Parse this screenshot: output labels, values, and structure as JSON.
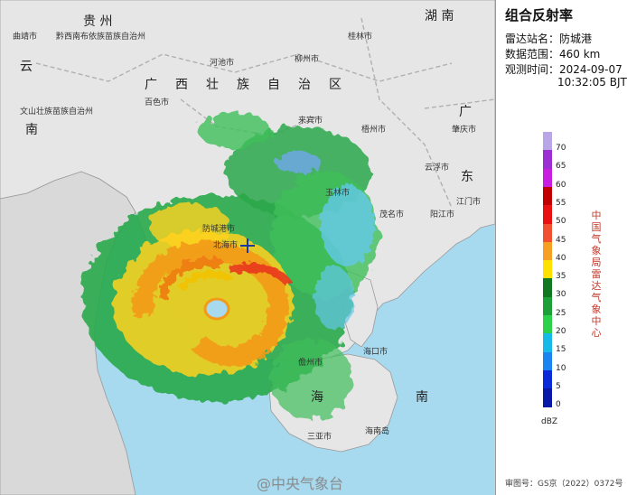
{
  "panel": {
    "title": "组合反射率",
    "station": "雷达站名：防城港",
    "range": "数据范围：460 km",
    "obs_date": "观测时间：2024-09-07",
    "obs_time": "10:32:05 BJT",
    "org_vertical": "中国气象局雷达气象中心",
    "unit": "dBZ",
    "approval": "审图号：GS京（2022）0372号"
  },
  "legend": {
    "levels": [
      {
        "value": "70",
        "color": "#b8a6e6"
      },
      {
        "value": "65",
        "color": "#9b2fd1"
      },
      {
        "value": "60",
        "color": "#c71ee0"
      },
      {
        "value": "55",
        "color": "#c00000"
      },
      {
        "value": "50",
        "color": "#e81010"
      },
      {
        "value": "45",
        "color": "#f05030"
      },
      {
        "value": "40",
        "color": "#f5a023"
      },
      {
        "value": "35",
        "color": "#ffe100"
      },
      {
        "value": "30",
        "color": "#107820"
      },
      {
        "value": "25",
        "color": "#1ea038"
      },
      {
        "value": "20",
        "color": "#2dd04a"
      },
      {
        "value": "15",
        "color": "#16b9e8"
      },
      {
        "value": "10",
        "color": "#1c84f0"
      },
      {
        "value": "5",
        "color": "#0c2bd8"
      },
      {
        "value": "0",
        "color": "#0a18a8"
      }
    ]
  },
  "map": {
    "watermark": "@中央气象台",
    "labels": {
      "guizhou": "贵   州",
      "hunan": "湖   南",
      "yun": "云",
      "nan": "南",
      "guangxi": "广西壮族自治区",
      "guang": "广",
      "dong": "东",
      "hai": "海",
      "nan2": "南",
      "qujing": "曲靖市",
      "qianxinan": "黔西南布依族苗族自治州",
      "guilin": "桂林市",
      "hechi": "河池市",
      "liuzhou": "柳州市",
      "wenshan": "文山壮族苗族自治州",
      "baise": "百色市",
      "laibin": "来宾市",
      "wuzhou": "梧州市",
      "zhaoqing": "肇庆市",
      "yunfu": "云浮市",
      "yulin": "玉林市",
      "jiangmen": "江门市",
      "maoming": "茂名市",
      "yangjiang": "阳江市",
      "fangcheng": "防城港市",
      "beihai": "北海市",
      "haikou": "海口市",
      "danzhou": "儋州市",
      "sanya": "三亚市",
      "hainan_island": "海南岛"
    }
  }
}
